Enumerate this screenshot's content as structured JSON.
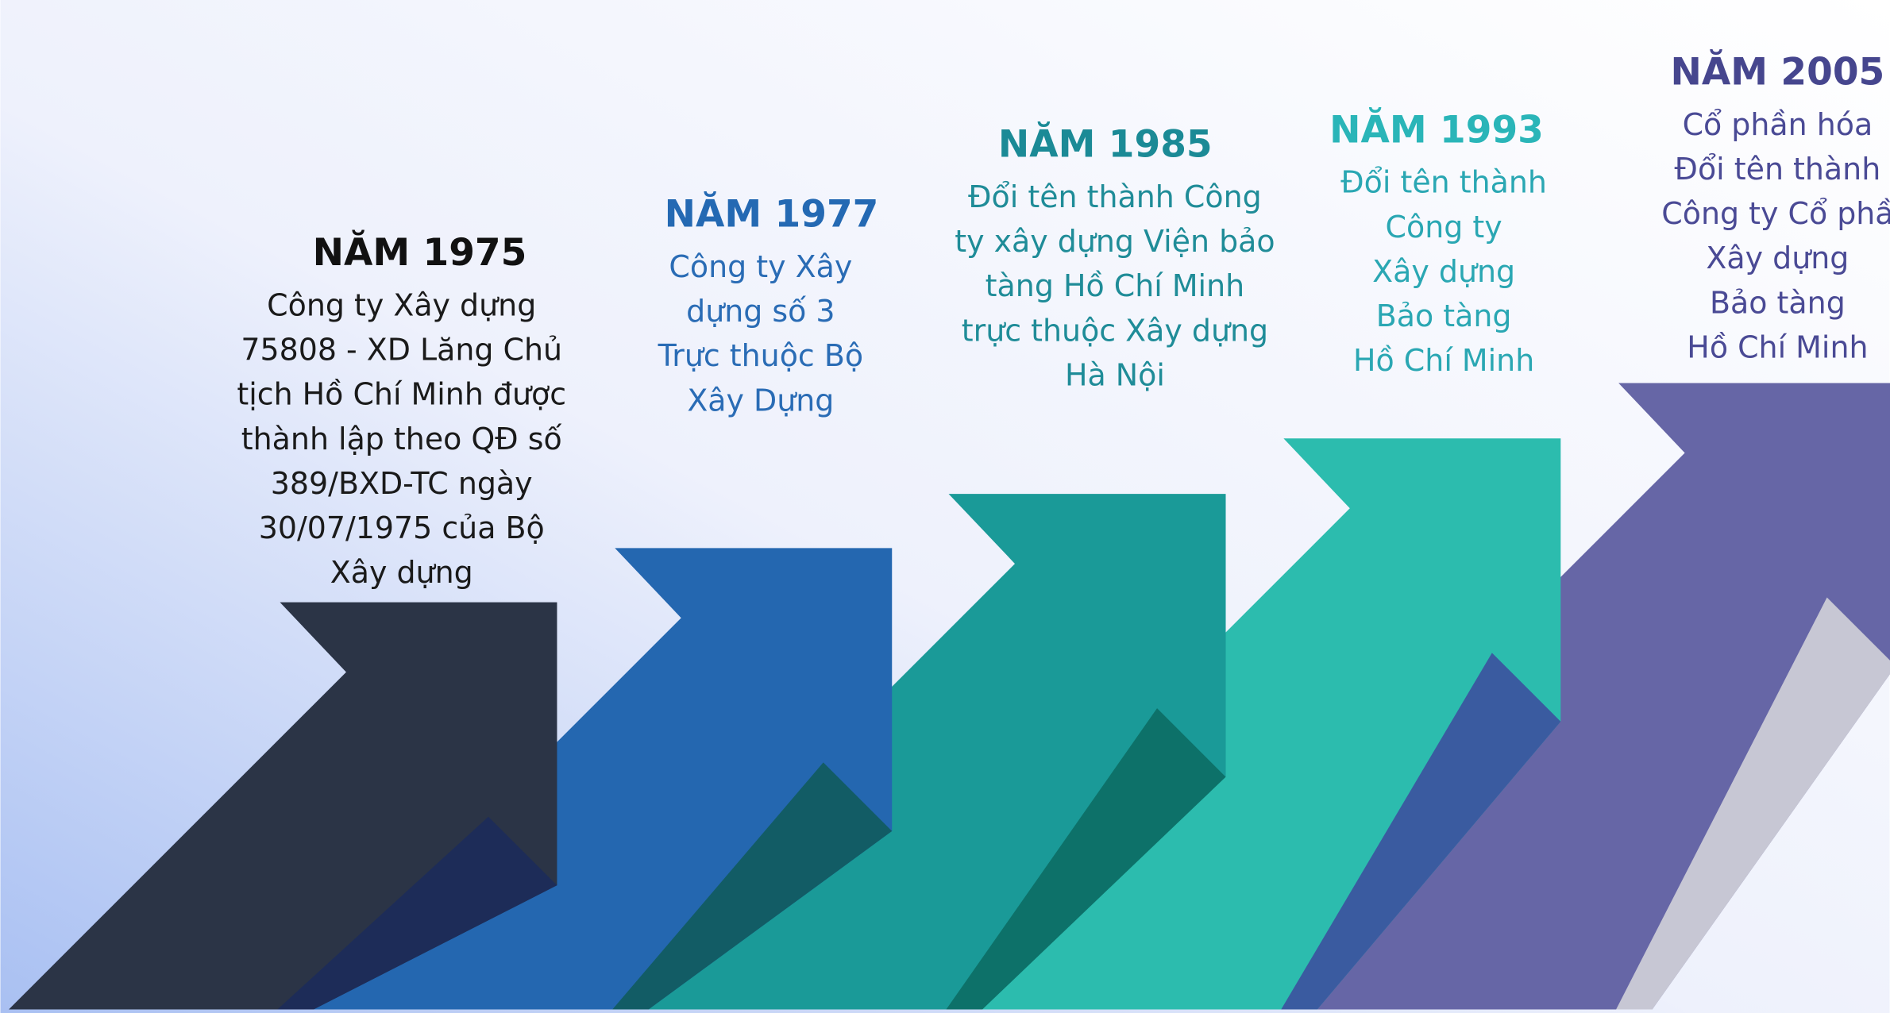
{
  "milestones": [
    {
      "year": "NĂM 1975",
      "lines": [
        "Công ty Xây dựng",
        "75808 - XD Lăng Chủ",
        "tịch Hồ Chí Minh được",
        "thành lập theo QĐ số",
        "389/BXD-TC ngày",
        "30/07/1975 của Bộ",
        "Xây dựng"
      ]
    },
    {
      "year": "NĂM 1977",
      "lines": [
        "Công ty Xây",
        "dựng số 3",
        "Trực thuộc Bộ",
        "Xây Dựng"
      ]
    },
    {
      "year": "NĂM 1985",
      "lines": [
        "Đổi tên thành Công",
        "ty xây dựng Viện bảo",
        "tàng Hồ Chí Minh",
        "trực thuộc Xây dựng",
        "Hà Nội"
      ]
    },
    {
      "year": "NĂM 1993",
      "lines": [
        "Đổi tên thành",
        "Công ty",
        "Xây dựng",
        "Bảo tàng",
        "Hồ Chí Minh"
      ]
    },
    {
      "year": "NĂM 2005",
      "lines": [
        "Cổ phần hóa",
        "Đổi tên thành",
        "Công ty Cổ phầ",
        "Xây dựng",
        "Bảo tàng",
        "Hồ Chí Minh"
      ]
    }
  ]
}
